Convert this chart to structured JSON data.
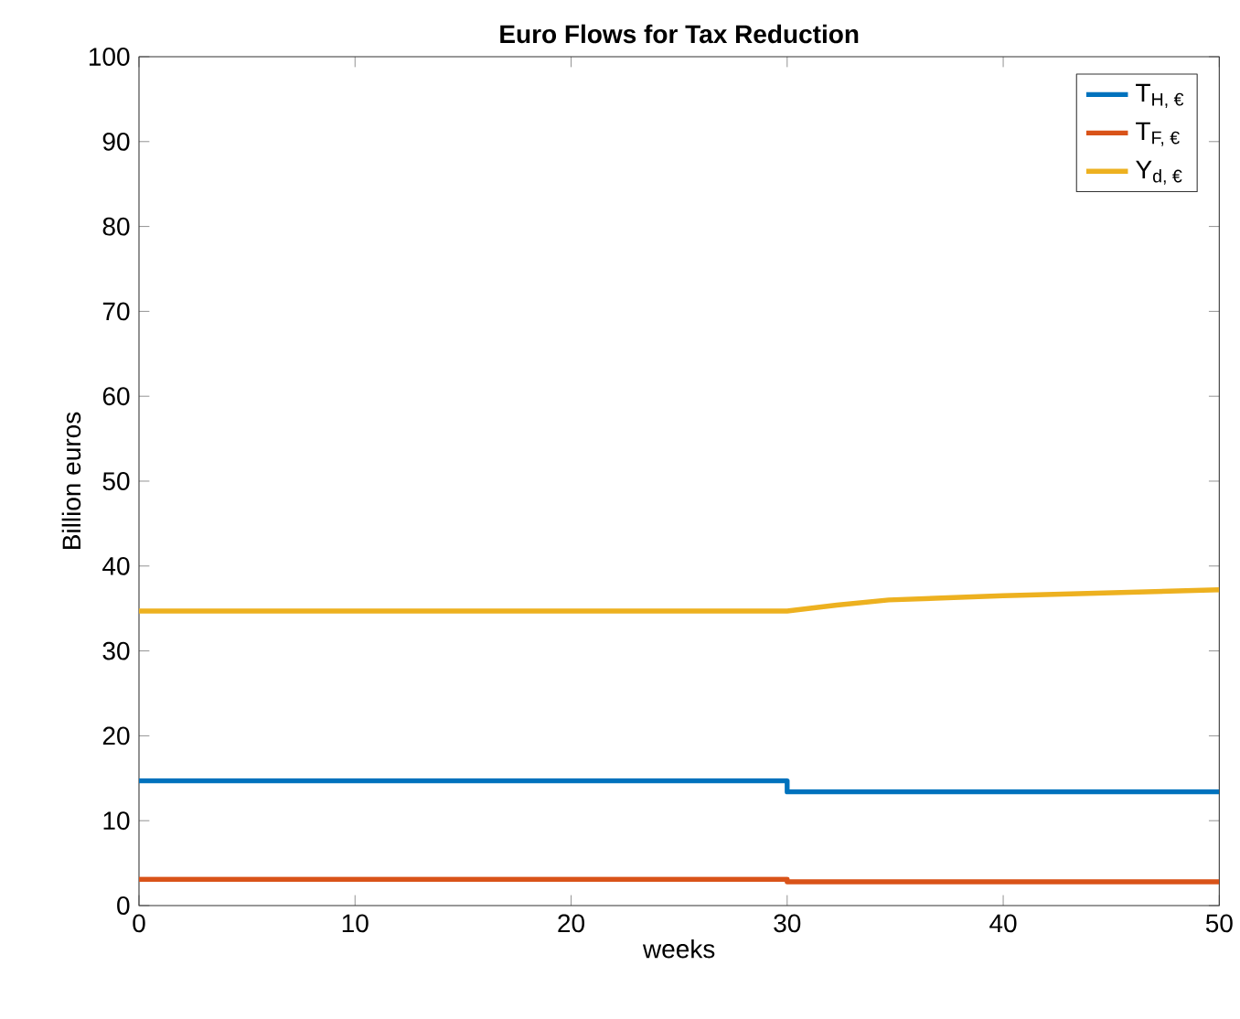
{
  "chart_data": {
    "type": "line",
    "title": "Euro Flows for Tax Reduction",
    "xlabel": "weeks",
    "ylabel": "Billion euros",
    "xlim": [
      0,
      50
    ],
    "xticks": [
      0,
      10,
      20,
      30,
      40,
      50
    ],
    "ylim": [
      0,
      100
    ],
    "yticks": [
      0,
      10,
      20,
      30,
      40,
      50,
      60,
      70,
      80,
      90,
      100
    ],
    "legend": "top right",
    "series": [
      {
        "name": "T$_{H, €}$",
        "color": "#0072bd",
        "x": [
          0,
          30,
          30,
          50
        ],
        "values": [
          14.7,
          14.7,
          13.4,
          13.4
        ]
      },
      {
        "name": "T$_{F, €}$",
        "color": "#d95319",
        "x": [
          0,
          30,
          30,
          50
        ],
        "values": [
          3.1,
          3.1,
          2.8,
          2.8
        ]
      },
      {
        "name": "Y$_{d, €}$",
        "color": "#edb120",
        "x": [
          0,
          30,
          32.3,
          34.7,
          40,
          50
        ],
        "values": [
          34.7,
          34.7,
          35.4,
          36.0,
          36.5,
          37.2
        ]
      }
    ]
  }
}
